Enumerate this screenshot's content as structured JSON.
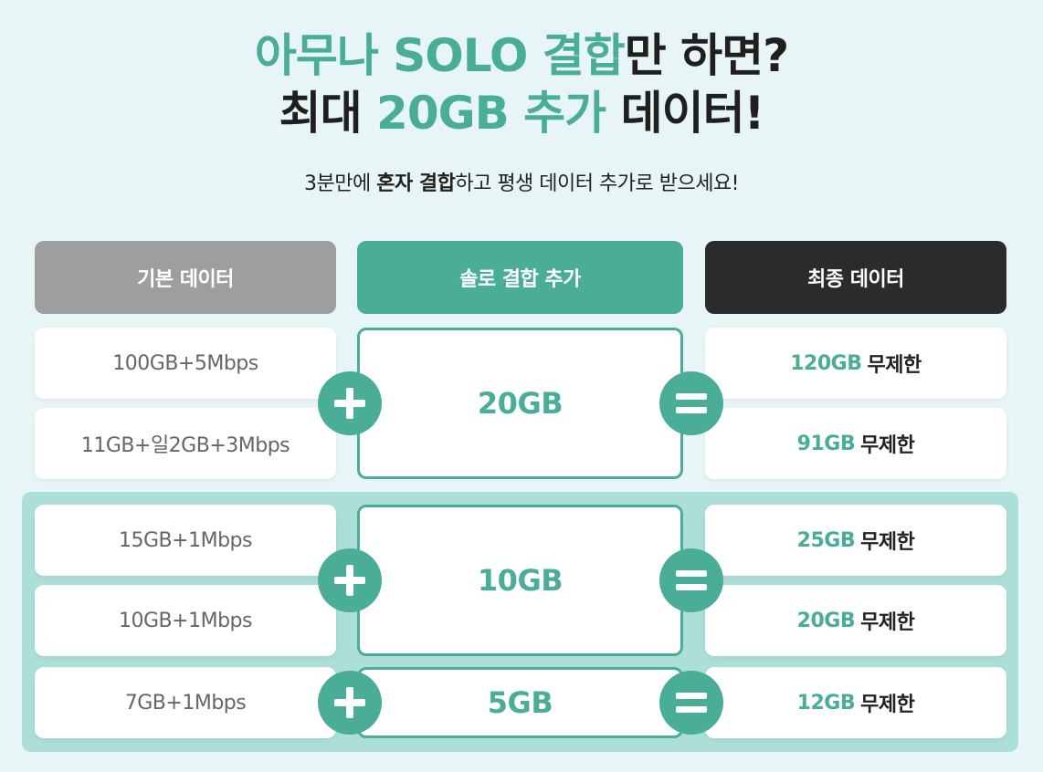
{
  "headline": {
    "line1_accent": "아무나 SOLO 결합",
    "line1_dark": "만 하면?",
    "line2_dark_a": "최대 ",
    "line2_accent": "20GB 추가",
    "line2_dark_b": " 데이터!"
  },
  "subtitle": {
    "prefix": "3분만에 ",
    "bold": "혼자 결합",
    "suffix": "하고 평생 데이터 추가로 받으세요!"
  },
  "headers": {
    "base": "기본 데이터",
    "add": "솔로 결합 추가",
    "final": "최종 데이터"
  },
  "groups": [
    {
      "add": "20GB",
      "plans": [
        {
          "base": "100GB+5Mbps",
          "final_gb": "120GB",
          "final_suffix": "무제한"
        },
        {
          "base": "11GB+일2GB+3Mbps",
          "final_gb": "91GB",
          "final_suffix": "무제한"
        }
      ]
    },
    {
      "add": "10GB",
      "plans": [
        {
          "base": "15GB+1Mbps",
          "final_gb": "25GB",
          "final_suffix": "무제한"
        },
        {
          "base": "10GB+1Mbps",
          "final_gb": "20GB",
          "final_suffix": "무제한"
        }
      ]
    },
    {
      "add": "5GB",
      "plans": [
        {
          "base": "7GB+1Mbps",
          "final_gb": "12GB",
          "final_suffix": "무제한"
        }
      ]
    }
  ],
  "colors": {
    "accent": "#4aad98",
    "background": "#e8f5f6",
    "lower_panel": "#acdfd8",
    "header_base": "#9e9e9e",
    "header_final": "#2b2b2b"
  },
  "icons": {
    "operator_plus": "plus-icon",
    "operator_equals": "equals-icon"
  }
}
